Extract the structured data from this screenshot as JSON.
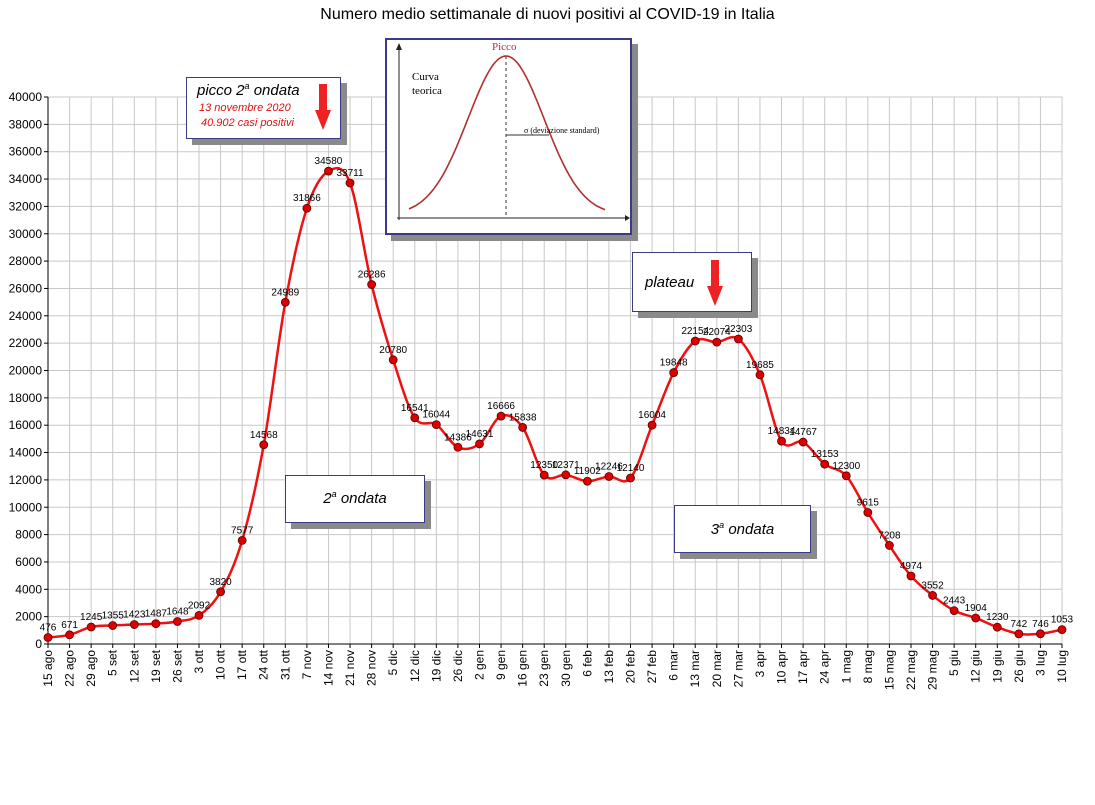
{
  "chart_data": {
    "type": "line",
    "title": "Numero medio settimanale di nuovi positivi al COVID-19 in Italia",
    "xlabel": "",
    "ylabel": "",
    "ylim": [
      0,
      40000
    ],
    "yticks": [
      0,
      2000,
      4000,
      6000,
      8000,
      10000,
      12000,
      14000,
      16000,
      18000,
      20000,
      22000,
      24000,
      26000,
      28000,
      30000,
      32000,
      34000,
      36000,
      38000,
      40000
    ],
    "grid": true,
    "line_color": "#ee1111",
    "marker_color": "#dd0000",
    "categories": [
      "15 ago",
      "22 ago",
      "29 ago",
      "5 set",
      "12 set",
      "19 set",
      "26 set",
      "3 ott",
      "10 ott",
      "17 ott",
      "24 ott",
      "31 ott",
      "7 nov",
      "14 nov",
      "21 nov",
      "28 nov",
      "5 dic",
      "12 dic",
      "19 dic",
      "26 dic",
      "2 gen",
      "9 gen",
      "16 gen",
      "23 gen",
      "30 gen",
      "6 feb",
      "13 feb",
      "20 feb",
      "27 feb",
      "6 mar",
      "13 mar",
      "20 mar",
      "27 mar",
      "3 apr",
      "10 apr",
      "17 apr",
      "24 apr",
      "1 mag",
      "8 mag",
      "15 mag",
      "22 mag",
      "29 mag",
      "5 giu",
      "12 giu",
      "19 giu",
      "26 giu",
      "3 lug",
      "10 lug"
    ],
    "values": [
      476,
      671,
      1245,
      1355,
      1423,
      1487,
      1648,
      2092,
      3820,
      7577,
      14568,
      24989,
      31866,
      34580,
      33711,
      26286,
      20780,
      16541,
      16044,
      14386,
      14631,
      16666,
      15838,
      12350,
      12371,
      11902,
      12246,
      12140,
      16004,
      19848,
      22154,
      22074,
      22303,
      19685,
      14834,
      14767,
      13153,
      12300,
      9615,
      7208,
      4974,
      3552,
      2443,
      1904,
      1230,
      742,
      746,
      1053
    ]
  },
  "annotations": {
    "peak_box": {
      "title": "picco 2",
      "sup": "a",
      "title_rest": " ondata",
      "line1": "13 novembre 2020",
      "line2": "40.902 casi positivi"
    },
    "plateau_box": {
      "title": "plateau"
    },
    "wave2_box": {
      "pre": "2",
      "sup": "a",
      "post": " ondata"
    },
    "wave3_box": {
      "pre": "3",
      "sup": "a",
      "post": " ondata"
    },
    "inset": {
      "peak_label": "Picco",
      "curve_label_1": "Curva",
      "curve_label_2": "teorica",
      "sigma_label": "σ  (deviazione standard)"
    }
  },
  "colors": {
    "arrow": "#ee2222",
    "grid": "#c8c8c8",
    "box_border": "#3a3a8a"
  }
}
